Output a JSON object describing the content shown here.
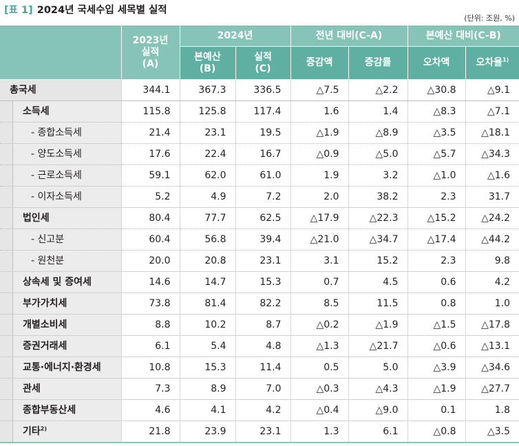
{
  "header": {
    "tag": "[표 1]",
    "title": "2024년 국세수입 세목별 실적",
    "unit": "(단위: 조원, %)"
  },
  "columns": {
    "y2023_a": "2023년",
    "y2023_b": "실적",
    "y2023_c": "(A)",
    "y2024": "2024년",
    "budget_a": "본예산",
    "budget_b": "(B)",
    "actual_a": "실적",
    "actual_b": "(C)",
    "yoy": "전년 대비(C-A)",
    "yoy_amount": "증감액",
    "yoy_rate": "증감률",
    "vs_budget": "본예산 대비(C-B)",
    "err_amount": "오차액",
    "err_rate": "오차율",
    "err_rate_note": "1)"
  },
  "rows": [
    {
      "name": "총국세",
      "note": "",
      "v": [
        "344.1",
        "367.3",
        "336.5",
        "△7.5",
        "△2.2",
        "△30.8",
        "△9.1"
      ]
    },
    {
      "name": "소득세",
      "note": "",
      "v": [
        "115.8",
        "125.8",
        "117.4",
        "1.6",
        "1.4",
        "△8.3",
        "△7.1"
      ]
    },
    {
      "name": "- 종합소득세",
      "note": "",
      "v": [
        "21.4",
        "23.1",
        "19.5",
        "△1.9",
        "△8.9",
        "△3.5",
        "△18.1"
      ]
    },
    {
      "name": "- 양도소득세",
      "note": "",
      "v": [
        "17.6",
        "22.4",
        "16.7",
        "△0.9",
        "△5.0",
        "△5.7",
        "△34.3"
      ]
    },
    {
      "name": "- 근로소득세",
      "note": "",
      "v": [
        "59.1",
        "62.0",
        "61.0",
        "1.9",
        "3.2",
        "△1.0",
        "△1.6"
      ]
    },
    {
      "name": "- 이자소득세",
      "note": "",
      "v": [
        "5.2",
        "4.9",
        "7.2",
        "2.0",
        "38.2",
        "2.3",
        "31.7"
      ]
    },
    {
      "name": "법인세",
      "note": "",
      "v": [
        "80.4",
        "77.7",
        "62.5",
        "△17.9",
        "△22.3",
        "△15.2",
        "△24.2"
      ]
    },
    {
      "name": "- 신고분",
      "note": "",
      "v": [
        "60.4",
        "56.8",
        "39.4",
        "△21.0",
        "△34.7",
        "△17.4",
        "△44.2"
      ]
    },
    {
      "name": "- 원천분",
      "note": "",
      "v": [
        "20.0",
        "20.8",
        "23.1",
        "3.1",
        "15.2",
        "2.3",
        "9.8"
      ]
    },
    {
      "name": "상속세 및 증여세",
      "note": "",
      "v": [
        "14.6",
        "14.7",
        "15.3",
        "0.7",
        "4.5",
        "0.6",
        "4.2"
      ]
    },
    {
      "name": "부가가치세",
      "note": "",
      "v": [
        "73.8",
        "81.4",
        "82.2",
        "8.5",
        "11.5",
        "0.8",
        "1.0"
      ]
    },
    {
      "name": "개별소비세",
      "note": "",
      "v": [
        "8.8",
        "10.2",
        "8.7",
        "△0.2",
        "△1.9",
        "△1.5",
        "△17.8"
      ]
    },
    {
      "name": "증권거래세",
      "note": "",
      "v": [
        "6.1",
        "5.4",
        "4.8",
        "△1.3",
        "△21.7",
        "△0.6",
        "△13.1"
      ]
    },
    {
      "name": "교통·에너지·환경세",
      "note": "",
      "v": [
        "10.8",
        "15.3",
        "11.4",
        "0.5",
        "5.0",
        "△3.9",
        "△34.6"
      ]
    },
    {
      "name": "관세",
      "note": "",
      "v": [
        "7.3",
        "8.9",
        "7.0",
        "△0.3",
        "△4.3",
        "△1.9",
        "△27.7"
      ]
    },
    {
      "name": "종합부동산세",
      "note": "",
      "v": [
        "4.6",
        "4.1",
        "4.2",
        "△0.4",
        "△9.0",
        "0.1",
        "1.8"
      ]
    },
    {
      "name": "기타",
      "note": "2)",
      "v": [
        "21.8",
        "23.9",
        "23.1",
        "1.3",
        "6.1",
        "△0.8",
        "△3.5"
      ]
    }
  ]
}
